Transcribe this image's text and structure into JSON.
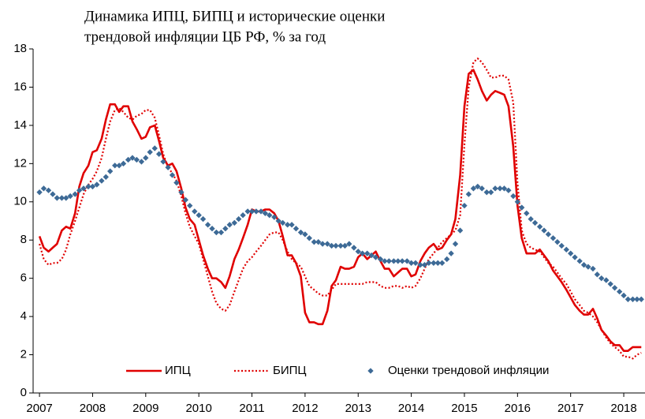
{
  "chart_data": {
    "type": "line",
    "title": [
      "Динамика ИПЦ, БИПЦ и исторические оценки",
      "трендовой инфляции ЦБ РФ, % за год"
    ],
    "xlim": [
      2006.88,
      2018.4
    ],
    "xticks": [
      2007,
      2008,
      2009,
      2010,
      2011,
      2012,
      2013,
      2014,
      2015,
      2016,
      2017,
      2018
    ],
    "ylim": [
      0,
      18
    ],
    "yticks": [
      0,
      2,
      4,
      6,
      8,
      10,
      12,
      14,
      16,
      18
    ],
    "grid": false,
    "legend": "bottom",
    "x": [
      2007.0,
      2007.08,
      2007.17,
      2007.25,
      2007.33,
      2007.42,
      2007.5,
      2007.58,
      2007.67,
      2007.75,
      2007.83,
      2007.92,
      2008.0,
      2008.08,
      2008.17,
      2008.25,
      2008.33,
      2008.42,
      2008.5,
      2008.58,
      2008.67,
      2008.75,
      2008.83,
      2008.92,
      2009.0,
      2009.08,
      2009.17,
      2009.25,
      2009.33,
      2009.42,
      2009.5,
      2009.58,
      2009.67,
      2009.75,
      2009.83,
      2009.92,
      2010.0,
      2010.08,
      2010.17,
      2010.25,
      2010.33,
      2010.42,
      2010.5,
      2010.58,
      2010.67,
      2010.75,
      2010.83,
      2010.92,
      2011.0,
      2011.08,
      2011.17,
      2011.25,
      2011.33,
      2011.42,
      2011.5,
      2011.58,
      2011.67,
      2011.75,
      2011.83,
      2011.92,
      2012.0,
      2012.08,
      2012.17,
      2012.25,
      2012.33,
      2012.42,
      2012.5,
      2012.58,
      2012.67,
      2012.75,
      2012.83,
      2012.92,
      2013.0,
      2013.08,
      2013.17,
      2013.25,
      2013.33,
      2013.42,
      2013.5,
      2013.58,
      2013.67,
      2013.75,
      2013.83,
      2013.92,
      2014.0,
      2014.08,
      2014.17,
      2014.25,
      2014.33,
      2014.42,
      2014.5,
      2014.58,
      2014.67,
      2014.75,
      2014.83,
      2014.92,
      2015.0,
      2015.08,
      2015.17,
      2015.25,
      2015.33,
      2015.42,
      2015.5,
      2015.58,
      2015.67,
      2015.75,
      2015.83,
      2015.92,
      2016.0,
      2016.08,
      2016.17,
      2016.25,
      2016.33,
      2016.42,
      2016.5,
      2016.58,
      2016.67,
      2016.75,
      2016.83,
      2016.92,
      2017.0,
      2017.08,
      2017.17,
      2017.25,
      2017.33,
      2017.42,
      2017.5,
      2017.58,
      2017.67,
      2017.75,
      2017.83,
      2017.92,
      2018.0,
      2018.08,
      2018.17,
      2018.25,
      2018.33
    ],
    "series": [
      {
        "name": "ИПЦ",
        "color": "#e00000",
        "style": "solid",
        "values": [
          8.2,
          7.6,
          7.4,
          7.6,
          7.8,
          8.5,
          8.7,
          8.6,
          9.4,
          10.8,
          11.5,
          11.9,
          12.6,
          12.7,
          13.3,
          14.3,
          15.1,
          15.1,
          14.7,
          15.0,
          15.0,
          14.2,
          13.8,
          13.3,
          13.4,
          13.9,
          14.0,
          13.2,
          12.3,
          11.9,
          12.0,
          11.6,
          10.7,
          9.7,
          9.1,
          8.8,
          8.0,
          7.2,
          6.5,
          6.0,
          6.0,
          5.8,
          5.5,
          6.1,
          7.0,
          7.5,
          8.1,
          8.8,
          9.6,
          9.5,
          9.5,
          9.6,
          9.6,
          9.4,
          9.0,
          8.2,
          7.2,
          7.2,
          6.8,
          6.1,
          4.2,
          3.7,
          3.7,
          3.6,
          3.6,
          4.3,
          5.6,
          5.9,
          6.6,
          6.5,
          6.5,
          6.6,
          7.1,
          7.3,
          7.0,
          7.2,
          7.4,
          6.9,
          6.5,
          6.5,
          6.1,
          6.3,
          6.5,
          6.5,
          6.1,
          6.2,
          6.9,
          7.3,
          7.6,
          7.8,
          7.5,
          7.6,
          8.0,
          8.3,
          9.1,
          11.4,
          15.0,
          16.7,
          16.9,
          16.4,
          15.8,
          15.3,
          15.6,
          15.8,
          15.7,
          15.6,
          15.0,
          12.9,
          9.8,
          8.1,
          7.3,
          7.3,
          7.3,
          7.5,
          7.2,
          6.9,
          6.4,
          6.1,
          5.8,
          5.4,
          5.0,
          4.6,
          4.3,
          4.1,
          4.1,
          4.4,
          3.9,
          3.3,
          3.0,
          2.7,
          2.5,
          2.5,
          2.2,
          2.2,
          2.4,
          2.4,
          2.4
        ]
      },
      {
        "name": "БИПЦ",
        "color": "#e00000",
        "style": "dotted",
        "values": [
          7.8,
          7.0,
          6.7,
          6.8,
          6.8,
          7.0,
          7.5,
          8.3,
          9.0,
          9.7,
          10.4,
          10.9,
          11.2,
          11.6,
          12.3,
          13.3,
          14.2,
          14.8,
          14.9,
          14.7,
          14.4,
          14.3,
          14.5,
          14.6,
          14.8,
          14.8,
          14.4,
          13.5,
          12.5,
          11.8,
          11.5,
          11.1,
          10.3,
          9.4,
          8.7,
          8.2,
          7.8,
          7.0,
          6.1,
          5.3,
          4.7,
          4.4,
          4.3,
          4.6,
          5.3,
          5.9,
          6.5,
          6.9,
          7.1,
          7.4,
          7.7,
          8.0,
          8.3,
          8.4,
          8.4,
          8.0,
          7.4,
          7.0,
          6.8,
          6.6,
          6.1,
          5.6,
          5.4,
          5.2,
          5.1,
          5.1,
          5.4,
          5.7,
          5.7,
          5.7,
          5.7,
          5.7,
          5.7,
          5.7,
          5.8,
          5.8,
          5.8,
          5.6,
          5.5,
          5.5,
          5.6,
          5.6,
          5.5,
          5.6,
          5.5,
          5.6,
          6.0,
          6.5,
          7.0,
          7.3,
          7.6,
          7.9,
          8.1,
          8.3,
          8.5,
          9.3,
          13.0,
          16.0,
          17.3,
          17.5,
          17.3,
          16.9,
          16.5,
          16.5,
          16.6,
          16.6,
          16.4,
          15.2,
          11.0,
          8.5,
          7.8,
          7.6,
          7.5,
          7.4,
          7.1,
          6.8,
          6.6,
          6.3,
          6.0,
          5.7,
          5.3,
          4.9,
          4.6,
          4.3,
          4.2,
          4.0,
          3.7,
          3.3,
          2.9,
          2.6,
          2.4,
          2.2,
          1.9,
          1.9,
          1.8,
          2.0,
          2.1
        ]
      },
      {
        "name": "Оценки трендовой инфляции",
        "color": "#3d6a96",
        "style": "markers",
        "values": [
          10.5,
          10.7,
          10.6,
          10.4,
          10.2,
          10.2,
          10.2,
          10.3,
          10.4,
          10.6,
          10.7,
          10.8,
          10.8,
          10.9,
          11.1,
          11.3,
          11.6,
          11.9,
          11.9,
          12.0,
          12.2,
          12.3,
          12.2,
          12.1,
          12.3,
          12.6,
          12.8,
          12.5,
          12.1,
          11.8,
          11.4,
          11.0,
          10.5,
          10.1,
          9.8,
          9.5,
          9.3,
          9.1,
          8.8,
          8.6,
          8.4,
          8.4,
          8.6,
          8.8,
          8.9,
          9.1,
          9.3,
          9.5,
          9.5,
          9.5,
          9.5,
          9.4,
          9.3,
          9.2,
          9.0,
          8.9,
          8.8,
          8.8,
          8.6,
          8.4,
          8.3,
          8.1,
          7.9,
          7.9,
          7.8,
          7.8,
          7.7,
          7.7,
          7.7,
          7.7,
          7.8,
          7.6,
          7.4,
          7.3,
          7.3,
          7.2,
          7.1,
          7.0,
          6.9,
          6.9,
          6.9,
          6.9,
          6.9,
          6.9,
          6.8,
          6.8,
          6.7,
          6.7,
          6.8,
          6.8,
          6.8,
          6.8,
          7.0,
          7.3,
          7.8,
          8.5,
          9.8,
          10.4,
          10.7,
          10.8,
          10.7,
          10.5,
          10.5,
          10.7,
          10.7,
          10.7,
          10.6,
          10.3,
          10.0,
          9.7,
          9.4,
          9.1,
          8.9,
          8.7,
          8.5,
          8.3,
          8.1,
          7.9,
          7.7,
          7.5,
          7.3,
          7.1,
          6.9,
          6.7,
          6.6,
          6.5,
          6.2,
          6.0,
          5.9,
          5.7,
          5.5,
          5.3,
          5.1,
          4.9,
          4.9,
          4.9,
          4.9
        ]
      }
    ]
  }
}
